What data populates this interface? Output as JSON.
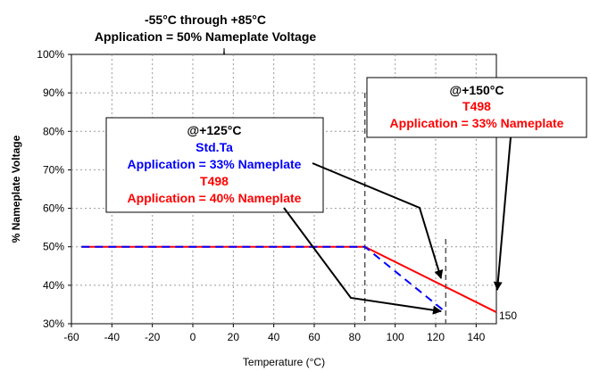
{
  "chart_data": {
    "type": "line",
    "title": "-55°C through +85°C",
    "subtitle": "Application = 50% Nameplate Voltage",
    "xlabel": "Temperature (°C)",
    "ylabel": "% Nameplate Voltage",
    "xlim": [
      -60,
      150
    ],
    "ylim": [
      30,
      100
    ],
    "x_ticks": [
      -60,
      -40,
      -20,
      0,
      20,
      40,
      60,
      80,
      100,
      120,
      140
    ],
    "y_ticks": [
      30,
      40,
      50,
      60,
      70,
      80,
      90,
      100
    ],
    "y_tick_labels": [
      "30%",
      "40%",
      "50%",
      "60%",
      "70%",
      "80%",
      "90%",
      "100%"
    ],
    "grid": true,
    "series": [
      {
        "color": "#ff0000",
        "style": "solid",
        "x": [
          -55,
          85,
          150
        ],
        "y": [
          50,
          50,
          33
        ]
      },
      {
        "color": "#0000ff",
        "style": "dashed",
        "x": [
          -55,
          85,
          125
        ],
        "y": [
          50,
          50,
          33
        ]
      }
    ],
    "reference_lines": [
      {
        "x": 85,
        "style": "dashed",
        "color": "#555555"
      },
      {
        "x": 125,
        "style": "dashed",
        "color": "#555555"
      }
    ],
    "end_label": "150",
    "annotations": [
      {
        "id": "box125",
        "lines": [
          {
            "text": "@+125°C",
            "color": "#000000"
          },
          {
            "text": "Std.Ta",
            "color": "#0000ff"
          },
          {
            "text": "Application = 33% Nameplate",
            "color": "#0000ff"
          },
          {
            "text": "T498",
            "color": "#ff0000"
          },
          {
            "text": "Application = 40% Nameplate",
            "color": "#ff0000"
          }
        ]
      },
      {
        "id": "box150",
        "lines": [
          {
            "text": "@+150°C",
            "color": "#000000"
          },
          {
            "text": "T498",
            "color": "#ff0000"
          },
          {
            "text": "Application = 33% Nameplate",
            "color": "#ff0000"
          }
        ]
      }
    ]
  }
}
